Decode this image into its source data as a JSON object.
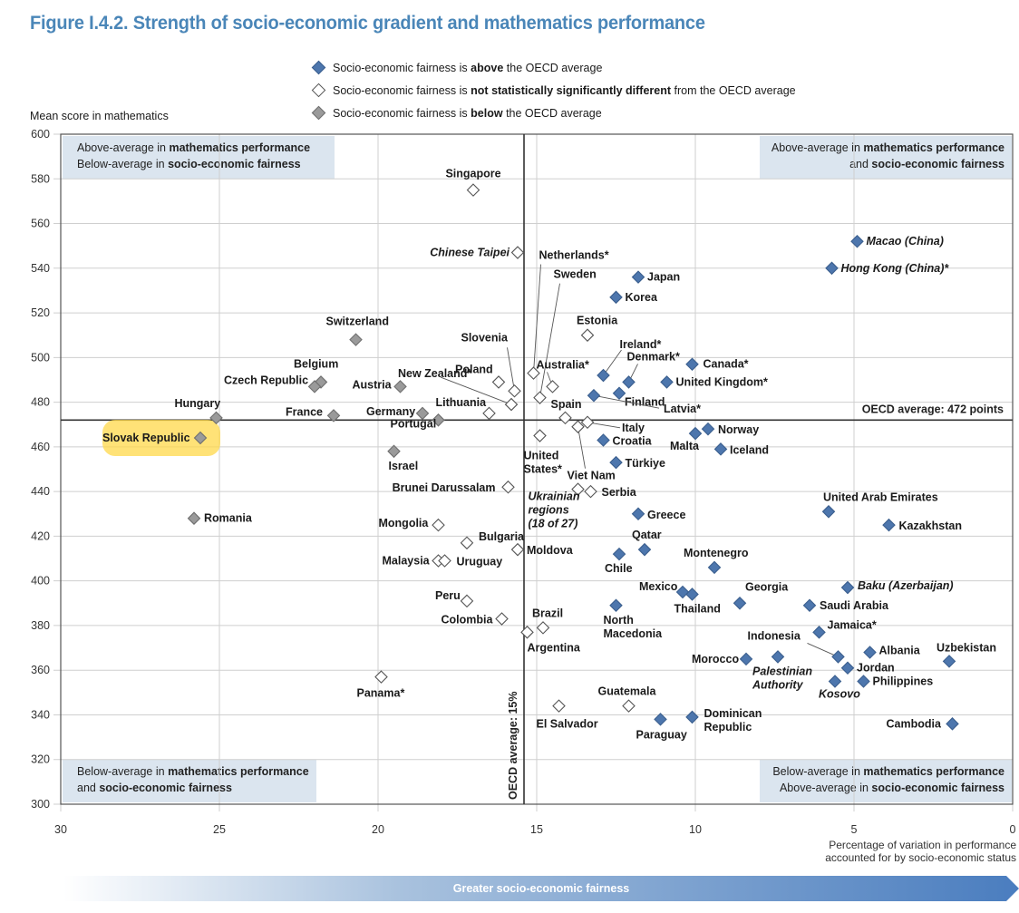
{
  "title": "Figure I.4.2. Strength of socio-economic gradient and mathematics performance",
  "colors": {
    "title": "#4a86b8",
    "above": "#4d76ad",
    "not_significant": "#ffffff",
    "below": "#9a9a9a",
    "quadrant_box": "#dbe5ef",
    "highlight": "#ffd84a",
    "arrow_start": "#ffffff",
    "arrow_end": "#4a7dbf"
  },
  "legend": [
    {
      "key": "above",
      "pre": "Socio-economic fairness is ",
      "bold": "above",
      "post": " the OECD average"
    },
    {
      "key": "not_significant",
      "pre": "Socio-economic fairness is ",
      "bold": "not statistically significantly different",
      "post": " from the OECD average"
    },
    {
      "key": "below",
      "pre": "Socio-economic fairness is ",
      "bold": "below",
      "post": " the OECD average"
    }
  ],
  "arrow_label": "Greater socio-economic fairness",
  "chart_data": {
    "type": "scatter",
    "title": "Figure I.4.2. Strength of socio-economic gradient and mathematics performance",
    "ylabel": "Mean score in mathematics",
    "xlabel": "Percentage of variation in performance accounted for by socio-economic status",
    "xlim": [
      30,
      0
    ],
    "ylim": [
      300,
      600
    ],
    "x_ticks": [
      30,
      25,
      20,
      15,
      10,
      5,
      0
    ],
    "y_ticks": [
      300,
      320,
      340,
      360,
      380,
      400,
      420,
      440,
      460,
      480,
      500,
      520,
      540,
      560,
      580,
      600
    ],
    "grid": true,
    "x_reversed": true,
    "oecd_average_x": 15.4,
    "oecd_average_x_label": "OECD average: 15%",
    "oecd_average_y": 472,
    "oecd_average_y_label": "OECD average: 472 points",
    "quadrants": [
      {
        "position": "top-left",
        "lines": [
          [
            "Above-average in ",
            "mathematics performance"
          ],
          [
            "Below-average in ",
            "socio-economic fairness"
          ]
        ]
      },
      {
        "position": "top-right",
        "lines": [
          [
            "Above-average in ",
            "mathematics performance"
          ],
          [
            "and ",
            "socio-economic fairness"
          ]
        ]
      },
      {
        "position": "bottom-left",
        "lines": [
          [
            "Below-average in ",
            "mathematics performance"
          ],
          [
            "and ",
            "socio-economic fairness"
          ]
        ]
      },
      {
        "position": "bottom-right",
        "lines": [
          [
            "Below-average in ",
            "mathematics performance"
          ],
          [
            "Above-average in ",
            "socio-economic fairness"
          ]
        ]
      }
    ],
    "points": [
      {
        "name": "Singapore",
        "x": 17.0,
        "y": 575,
        "cat": "not_significant"
      },
      {
        "name": "Chinese Taipei",
        "x": 15.6,
        "y": 547,
        "cat": "not_significant",
        "italic": true
      },
      {
        "name": "Netherlands*",
        "x": 15.1,
        "y": 493,
        "cat": "not_significant"
      },
      {
        "name": "Sweden",
        "x": 14.9,
        "y": 482,
        "cat": "not_significant"
      },
      {
        "name": "Australia*",
        "x": 14.5,
        "y": 487,
        "cat": "not_significant"
      },
      {
        "name": "Estonia",
        "x": 13.4,
        "y": 510,
        "cat": "not_significant"
      },
      {
        "name": "Ireland*",
        "x": 12.9,
        "y": 492,
        "cat": "above"
      },
      {
        "name": "Denmark*",
        "x": 12.1,
        "y": 489,
        "cat": "above"
      },
      {
        "name": "Japan",
        "x": 11.8,
        "y": 536,
        "cat": "above"
      },
      {
        "name": "Korea",
        "x": 12.5,
        "y": 527,
        "cat": "above"
      },
      {
        "name": "Canada*",
        "x": 10.1,
        "y": 497,
        "cat": "above"
      },
      {
        "name": "United Kingdom*",
        "x": 10.9,
        "y": 489,
        "cat": "above"
      },
      {
        "name": "Finland",
        "x": 12.4,
        "y": 484,
        "cat": "above"
      },
      {
        "name": "Latvia*",
        "x": 13.2,
        "y": 483,
        "cat": "above"
      },
      {
        "name": "Macao (China)",
        "x": 4.9,
        "y": 552,
        "cat": "above",
        "italic": true
      },
      {
        "name": "Hong Kong (China)*",
        "x": 5.7,
        "y": 540,
        "cat": "above",
        "italic": true
      },
      {
        "name": "Spain",
        "x": 14.1,
        "y": 473,
        "cat": "not_significant"
      },
      {
        "name": "Italy",
        "x": 13.4,
        "y": 471,
        "cat": "not_significant"
      },
      {
        "name": "Viet Nam",
        "x": 13.7,
        "y": 469,
        "cat": "not_significant"
      },
      {
        "name": "United States*",
        "x": 14.9,
        "y": 465,
        "cat": "not_significant"
      },
      {
        "name": "Croatia",
        "x": 12.9,
        "y": 463,
        "cat": "above"
      },
      {
        "name": "Türkiye",
        "x": 12.5,
        "y": 453,
        "cat": "above"
      },
      {
        "name": "Malta",
        "x": 10.0,
        "y": 466,
        "cat": "above"
      },
      {
        "name": "Norway",
        "x": 9.6,
        "y": 468,
        "cat": "above"
      },
      {
        "name": "Iceland",
        "x": 9.2,
        "y": 459,
        "cat": "above"
      },
      {
        "name": "Ukrainian regions (18 of 27)",
        "x": 13.7,
        "y": 441,
        "cat": "not_significant",
        "italic": true
      },
      {
        "name": "Serbia",
        "x": 13.3,
        "y": 440,
        "cat": "not_significant"
      },
      {
        "name": "Greece",
        "x": 11.8,
        "y": 430,
        "cat": "above"
      },
      {
        "name": "United Arab Emirates",
        "x": 5.8,
        "y": 431,
        "cat": "above"
      },
      {
        "name": "Kazakhstan",
        "x": 3.9,
        "y": 425,
        "cat": "above"
      },
      {
        "name": "Qatar",
        "x": 11.6,
        "y": 414,
        "cat": "above"
      },
      {
        "name": "Chile",
        "x": 12.4,
        "y": 412,
        "cat": "above"
      },
      {
        "name": "Montenegro",
        "x": 9.4,
        "y": 406,
        "cat": "above"
      },
      {
        "name": "Mexico",
        "x": 10.4,
        "y": 395,
        "cat": "above"
      },
      {
        "name": "Thailand",
        "x": 10.1,
        "y": 394,
        "cat": "above"
      },
      {
        "name": "Georgia",
        "x": 8.6,
        "y": 390,
        "cat": "above"
      },
      {
        "name": "Saudi Arabia",
        "x": 6.4,
        "y": 389,
        "cat": "above"
      },
      {
        "name": "Baku (Azerbaijan)",
        "x": 5.2,
        "y": 397,
        "cat": "above",
        "italic": true
      },
      {
        "name": "Jamaica*",
        "x": 6.1,
        "y": 377,
        "cat": "above"
      },
      {
        "name": "Albania",
        "x": 4.5,
        "y": 368,
        "cat": "above"
      },
      {
        "name": "Uzbekistan",
        "x": 2.0,
        "y": 364,
        "cat": "above"
      },
      {
        "name": "Indonesia",
        "x": 5.5,
        "y": 366,
        "cat": "above"
      },
      {
        "name": "Jordan",
        "x": 5.2,
        "y": 361,
        "cat": "above"
      },
      {
        "name": "Morocco",
        "x": 8.4,
        "y": 365,
        "cat": "above"
      },
      {
        "name": "Palestinian Authority",
        "x": 7.4,
        "y": 366,
        "cat": "above",
        "italic": true
      },
      {
        "name": "Kosovo",
        "x": 5.6,
        "y": 355,
        "cat": "above",
        "italic": true
      },
      {
        "name": "Philippines",
        "x": 4.7,
        "y": 355,
        "cat": "above"
      },
      {
        "name": "Cambodia",
        "x": 1.9,
        "y": 336,
        "cat": "above"
      },
      {
        "name": "North Macedonia",
        "x": 12.5,
        "y": 389,
        "cat": "above"
      },
      {
        "name": "Paraguay",
        "x": 11.1,
        "y": 338,
        "cat": "above"
      },
      {
        "name": "Dominican Republic",
        "x": 10.1,
        "y": 339,
        "cat": "above"
      },
      {
        "name": "Guatemala",
        "x": 12.1,
        "y": 344,
        "cat": "not_significant"
      },
      {
        "name": "El Salvador",
        "x": 14.3,
        "y": 344,
        "cat": "not_significant"
      },
      {
        "name": "Brazil",
        "x": 14.8,
        "y": 379,
        "cat": "not_significant"
      },
      {
        "name": "Argentina",
        "x": 15.3,
        "y": 377,
        "cat": "not_significant"
      },
      {
        "name": "Colombia",
        "x": 16.1,
        "y": 383,
        "cat": "not_significant"
      },
      {
        "name": "Peru",
        "x": 17.2,
        "y": 391,
        "cat": "not_significant"
      },
      {
        "name": "Panama*",
        "x": 19.9,
        "y": 357,
        "cat": "not_significant"
      },
      {
        "name": "Moldova",
        "x": 15.6,
        "y": 414,
        "cat": "not_significant"
      },
      {
        "name": "Malaysia",
        "x": 18.1,
        "y": 409,
        "cat": "not_significant"
      },
      {
        "name": "Uruguay",
        "x": 17.9,
        "y": 409,
        "cat": "not_significant"
      },
      {
        "name": "Bulgaria",
        "x": 17.2,
        "y": 417,
        "cat": "not_significant"
      },
      {
        "name": "Mongolia",
        "x": 18.1,
        "y": 425,
        "cat": "not_significant"
      },
      {
        "name": "Brunei Darussalam",
        "x": 15.9,
        "y": 442,
        "cat": "not_significant"
      },
      {
        "name": "Israel",
        "x": 19.5,
        "y": 458,
        "cat": "below"
      },
      {
        "name": "Portugal",
        "x": 18.1,
        "y": 472,
        "cat": "below"
      },
      {
        "name": "Germany",
        "x": 18.6,
        "y": 475,
        "cat": "below"
      },
      {
        "name": "Lithuania",
        "x": 16.5,
        "y": 475,
        "cat": "not_significant"
      },
      {
        "name": "New Zealand*",
        "x": 15.8,
        "y": 479,
        "cat": "not_significant"
      },
      {
        "name": "Slovenia",
        "x": 15.7,
        "y": 485,
        "cat": "not_significant"
      },
      {
        "name": "Poland",
        "x": 16.2,
        "y": 489,
        "cat": "not_significant"
      },
      {
        "name": "Austria",
        "x": 19.3,
        "y": 487,
        "cat": "below"
      },
      {
        "name": "Belgium",
        "x": 21.8,
        "y": 489,
        "cat": "below"
      },
      {
        "name": "Czech Republic",
        "x": 22.0,
        "y": 487,
        "cat": "below"
      },
      {
        "name": "Switzerland",
        "x": 20.7,
        "y": 508,
        "cat": "below"
      },
      {
        "name": "France",
        "x": 21.4,
        "y": 474,
        "cat": "below"
      },
      {
        "name": "Hungary",
        "x": 25.1,
        "y": 473,
        "cat": "below"
      },
      {
        "name": "Slovak Republic",
        "x": 25.6,
        "y": 464,
        "cat": "below",
        "highlight": true
      },
      {
        "name": "Romania",
        "x": 25.8,
        "y": 428,
        "cat": "below"
      }
    ]
  }
}
